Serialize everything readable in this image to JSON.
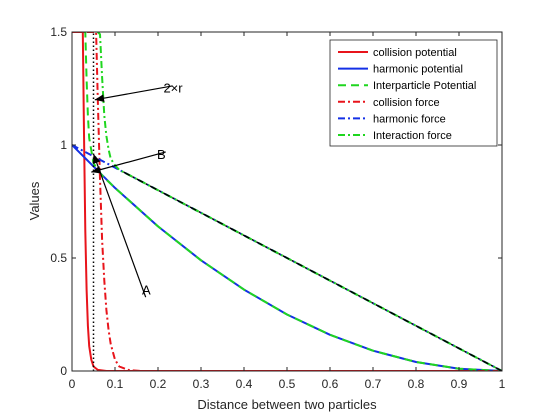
{
  "chart_data": {
    "type": "line",
    "title": "",
    "xlabel": "Distance between two particles",
    "ylabel": "Values",
    "xlim": [
      0,
      1
    ],
    "ylim": [
      0,
      1.5
    ],
    "xticks": [
      "0",
      "0.1",
      "0.2",
      "0.3",
      "0.4",
      "0.5",
      "0.6",
      "0.7",
      "0.8",
      "0.9",
      "1"
    ],
    "yticks": [
      "0",
      "0.5",
      "1",
      "1.5"
    ],
    "grid": false,
    "legend_position": "top-right",
    "series": [
      {
        "name": "collision potential",
        "color": "#e8141b",
        "dash": "solid",
        "x": [
          0.0,
          0.025,
          0.028,
          0.031,
          0.034,
          0.037,
          0.04,
          0.045,
          0.05,
          0.06,
          0.08,
          0.12,
          1.0
        ],
        "y": [
          1.5,
          1.5,
          1.05,
          0.62,
          0.36,
          0.2,
          0.11,
          0.05,
          0.02,
          0.005,
          0.0,
          0.0,
          0.0
        ]
      },
      {
        "name": "harmonic potential",
        "color": "#1430e6",
        "dash": "solid",
        "x": [
          0.0,
          0.1,
          0.2,
          0.3,
          0.4,
          0.5,
          0.6,
          0.7,
          0.8,
          0.9,
          1.0
        ],
        "y": [
          1.0,
          0.81,
          0.64,
          0.49,
          0.36,
          0.25,
          0.16,
          0.09,
          0.04,
          0.01,
          0.0
        ]
      },
      {
        "name": "Interparticle Potential",
        "color": "#1fd61f",
        "dash": "dashed",
        "x": [
          0.025,
          0.028,
          0.031,
          0.034,
          0.037,
          0.04,
          0.05,
          0.06,
          0.07,
          0.1,
          0.2,
          0.3,
          0.4,
          0.5,
          0.6,
          0.7,
          0.8,
          0.9,
          1.0
        ],
        "y": [
          1.5,
          1.5,
          1.5,
          1.29,
          1.13,
          1.03,
          0.92,
          0.89,
          0.865,
          0.81,
          0.64,
          0.49,
          0.36,
          0.25,
          0.16,
          0.09,
          0.04,
          0.01,
          0.0
        ]
      },
      {
        "name": "collision force",
        "color": "#e8141b",
        "dash": "dash-dot",
        "x": [
          0.0,
          0.056,
          0.06,
          0.065,
          0.07,
          0.075,
          0.08,
          0.085,
          0.09,
          0.1,
          0.11,
          0.13,
          0.16,
          1.0
        ],
        "y": [
          1.5,
          1.5,
          1.2,
          0.85,
          0.58,
          0.4,
          0.27,
          0.18,
          0.12,
          0.05,
          0.02,
          0.005,
          0.0,
          0.0
        ]
      },
      {
        "name": "harmonic force",
        "color": "#1430e6",
        "dash": "dash-dot",
        "x": [
          0.0,
          0.1,
          0.2,
          0.3,
          0.4,
          0.5,
          0.6,
          0.7,
          0.8,
          0.9,
          1.0
        ],
        "y": [
          1.0,
          0.9,
          0.8,
          0.7,
          0.6,
          0.5,
          0.4,
          0.3,
          0.2,
          0.1,
          0.0
        ]
      },
      {
        "name": "Interaction force",
        "color": "#1fd61f",
        "dash": "dash-dot",
        "x": [
          0.06,
          0.065,
          0.07,
          0.075,
          0.08,
          0.085,
          0.09,
          0.1,
          0.11,
          0.13,
          0.2,
          0.3,
          0.4,
          0.5,
          0.6,
          0.7,
          0.8,
          0.9,
          1.0
        ],
        "y": [
          1.5,
          1.49,
          1.3,
          1.13,
          1.04,
          0.98,
          0.94,
          0.91,
          0.89,
          0.87,
          0.8,
          0.7,
          0.6,
          0.5,
          0.4,
          0.3,
          0.2,
          0.1,
          0.0
        ]
      }
    ],
    "extra_lines": [
      {
        "role": "black dotted line",
        "color": "#000000",
        "dash": "dotted",
        "x": [
          0.05,
          0.05
        ],
        "y": [
          0.0,
          1.5
        ]
      },
      {
        "role": "black dash-dot line",
        "color": "#000000",
        "dash": "dash-dot",
        "x": [
          0.12,
          1.0
        ],
        "y": [
          0.88,
          0.0
        ]
      }
    ],
    "annotations": [
      {
        "text": "2×r",
        "x_text": 0.215,
        "y_text": 1.255,
        "x_head": 0.053,
        "y_head": 1.2
      },
      {
        "text": "B",
        "x_text": 0.2,
        "y_text": 0.96,
        "x_head": 0.045,
        "y_head": 0.88
      },
      {
        "text": "A",
        "x_text": 0.165,
        "y_text": 0.36,
        "x_head": 0.05,
        "y_head": 0.96
      }
    ]
  }
}
